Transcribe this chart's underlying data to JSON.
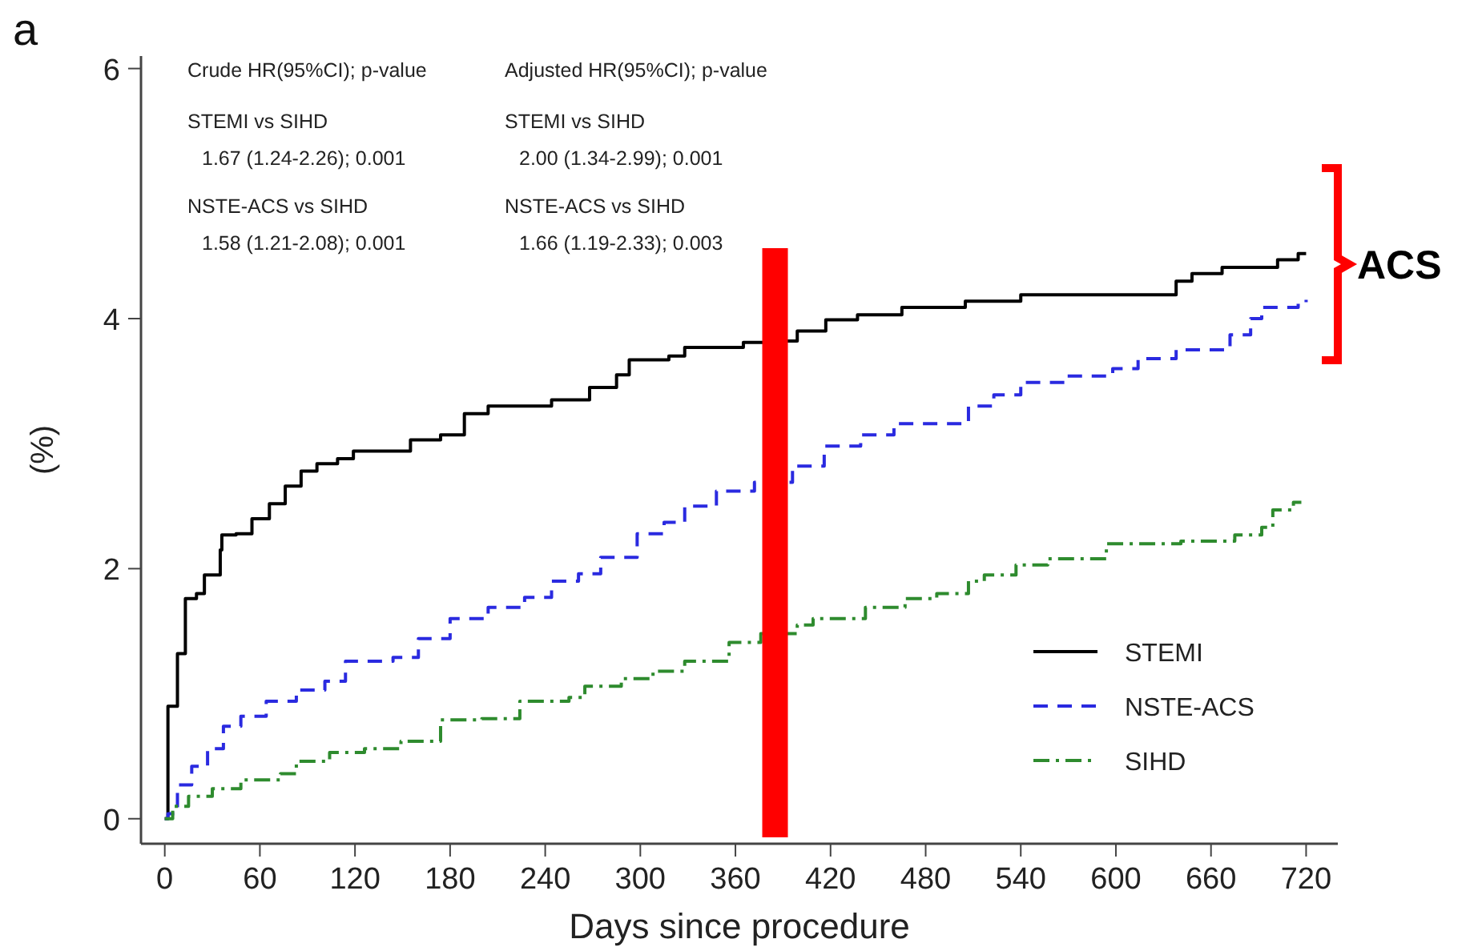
{
  "chart_data": {
    "type": "step",
    "xlabel": "Days since procedure",
    "ylabel": "(%)",
    "xlim": [
      -15,
      740
    ],
    "ylim": [
      -0.2,
      6.1
    ],
    "xticks": [
      0,
      60,
      120,
      180,
      240,
      300,
      360,
      420,
      480,
      540,
      600,
      660,
      720
    ],
    "yticks": [
      0,
      2,
      4,
      6
    ],
    "grid": false,
    "legend": "bottom right",
    "series": [
      {
        "name": "STEMI",
        "color": "#000000",
        "line_style": "solid",
        "x": [
          0,
          2,
          8,
          13,
          20,
          25,
          35,
          36,
          45,
          55,
          66,
          76,
          86,
          96,
          109,
          119,
          155,
          174,
          189,
          204,
          244,
          268,
          285,
          293,
          318,
          328,
          365,
          381,
          399,
          417,
          437,
          465,
          505,
          540,
          638,
          648,
          667,
          702,
          715,
          720
        ],
        "values": [
          0,
          0.9,
          1.32,
          1.76,
          1.8,
          1.95,
          2.15,
          2.27,
          2.28,
          2.4,
          2.52,
          2.66,
          2.78,
          2.84,
          2.88,
          2.94,
          3.03,
          3.07,
          3.24,
          3.3,
          3.35,
          3.45,
          3.55,
          3.67,
          3.7,
          3.77,
          3.81,
          3.82,
          3.9,
          3.99,
          4.03,
          4.09,
          4.14,
          4.19,
          4.3,
          4.36,
          4.41,
          4.47,
          4.52,
          4.52
        ]
      },
      {
        "name": "NSTE-ACS",
        "color": "#2a2ae0",
        "line_style": "dashed",
        "x": [
          0,
          2,
          8,
          17,
          27,
          37,
          48,
          64,
          83,
          101,
          114,
          144,
          160,
          180,
          204,
          227,
          244,
          261,
          275,
          298,
          315,
          328,
          348,
          372,
          396,
          416,
          439,
          460,
          507,
          523,
          540,
          568,
          598,
          614,
          638,
          672,
          685,
          692,
          715,
          720
        ],
        "values": [
          0,
          0.04,
          0.27,
          0.42,
          0.56,
          0.74,
          0.82,
          0.94,
          1.03,
          1.1,
          1.26,
          1.29,
          1.44,
          1.6,
          1.69,
          1.77,
          1.9,
          1.96,
          2.09,
          2.28,
          2.37,
          2.5,
          2.62,
          2.69,
          2.82,
          2.98,
          3.07,
          3.16,
          3.3,
          3.39,
          3.49,
          3.54,
          3.6,
          3.68,
          3.75,
          3.87,
          4.0,
          4.09,
          4.13,
          4.15
        ]
      },
      {
        "name": "SIHD",
        "color": "#2e8b2e",
        "line_style": "dotted",
        "x": [
          0,
          5,
          15,
          30,
          48,
          73,
          83,
          104,
          126,
          149,
          174,
          200,
          224,
          255,
          265,
          288,
          308,
          328,
          356,
          376,
          399,
          409,
          442,
          467,
          487,
          507,
          517,
          537,
          557,
          594,
          641,
          675,
          692,
          699,
          712,
          717
        ],
        "values": [
          0,
          0.1,
          0.18,
          0.24,
          0.31,
          0.36,
          0.46,
          0.53,
          0.56,
          0.62,
          0.79,
          0.8,
          0.94,
          0.97,
          1.06,
          1.12,
          1.18,
          1.26,
          1.41,
          1.48,
          1.55,
          1.6,
          1.69,
          1.76,
          1.8,
          1.9,
          1.95,
          2.03,
          2.08,
          2.2,
          2.22,
          2.27,
          2.33,
          2.47,
          2.53,
          2.53
        ]
      }
    ],
    "ref_lines": [
      {
        "axis": "x",
        "value": 385,
        "color": "#ff0000"
      }
    ],
    "annotations": [
      "a",
      "Crude HR(95%CI); p-value",
      "STEMI vs SIHD",
      "1.67 (1.24-2.26); 0.001",
      "NSTE-ACS vs SIHD",
      "1.58 (1.21-2.08); 0.001",
      "Adjusted HR(95%CI); p-value",
      "STEMI vs SIHD",
      "2.00 (1.34-2.99); 0.001",
      "NSTE-ACS vs SIHD",
      "1.66 (1.19-2.33); 0.003",
      "ACS"
    ]
  }
}
